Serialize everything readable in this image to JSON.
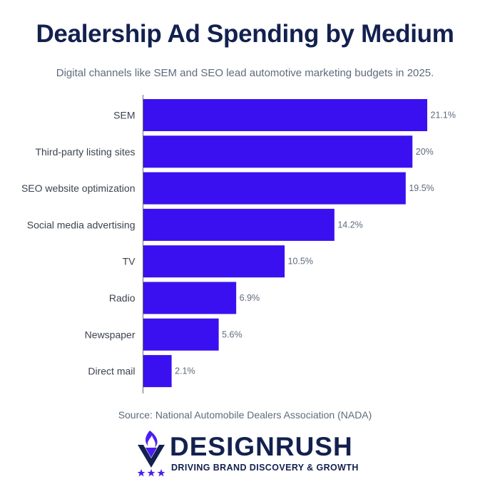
{
  "title": "Dealership Ad Spending by Medium",
  "subtitle": "Digital channels like SEM and SEO lead automotive marketing budgets in 2025.",
  "source": "Source: National Automobile Dealers Association (NADA)",
  "brand": {
    "name": "DESIGNRUSH",
    "tagline": "DRIVING BRAND DISCOVERY & GROWTH",
    "logo_icon": "flame-chevron-icon"
  },
  "colors": {
    "bar": "#3a10f0",
    "title": "#13214f",
    "text": "#3c4350",
    "muted": "#5e6b7d",
    "axis": "#6b6b6b"
  },
  "chart_data": {
    "type": "bar",
    "orientation": "horizontal",
    "categories": [
      "SEM",
      "Third-party listing sites",
      "SEO website optimization",
      "Social media advertising",
      "TV",
      "Radio",
      "Newspaper",
      "Direct mail"
    ],
    "values": [
      21.1,
      20,
      19.5,
      14.2,
      10.5,
      6.9,
      5.6,
      2.1
    ],
    "value_labels": [
      "21.1%",
      "20%",
      "19.5%",
      "14.2%",
      "10.5%",
      "6.9%",
      "5.6%",
      "2.1%"
    ],
    "unit": "%",
    "xlim": [
      0,
      21.1
    ],
    "grid": false,
    "legend": "none"
  }
}
